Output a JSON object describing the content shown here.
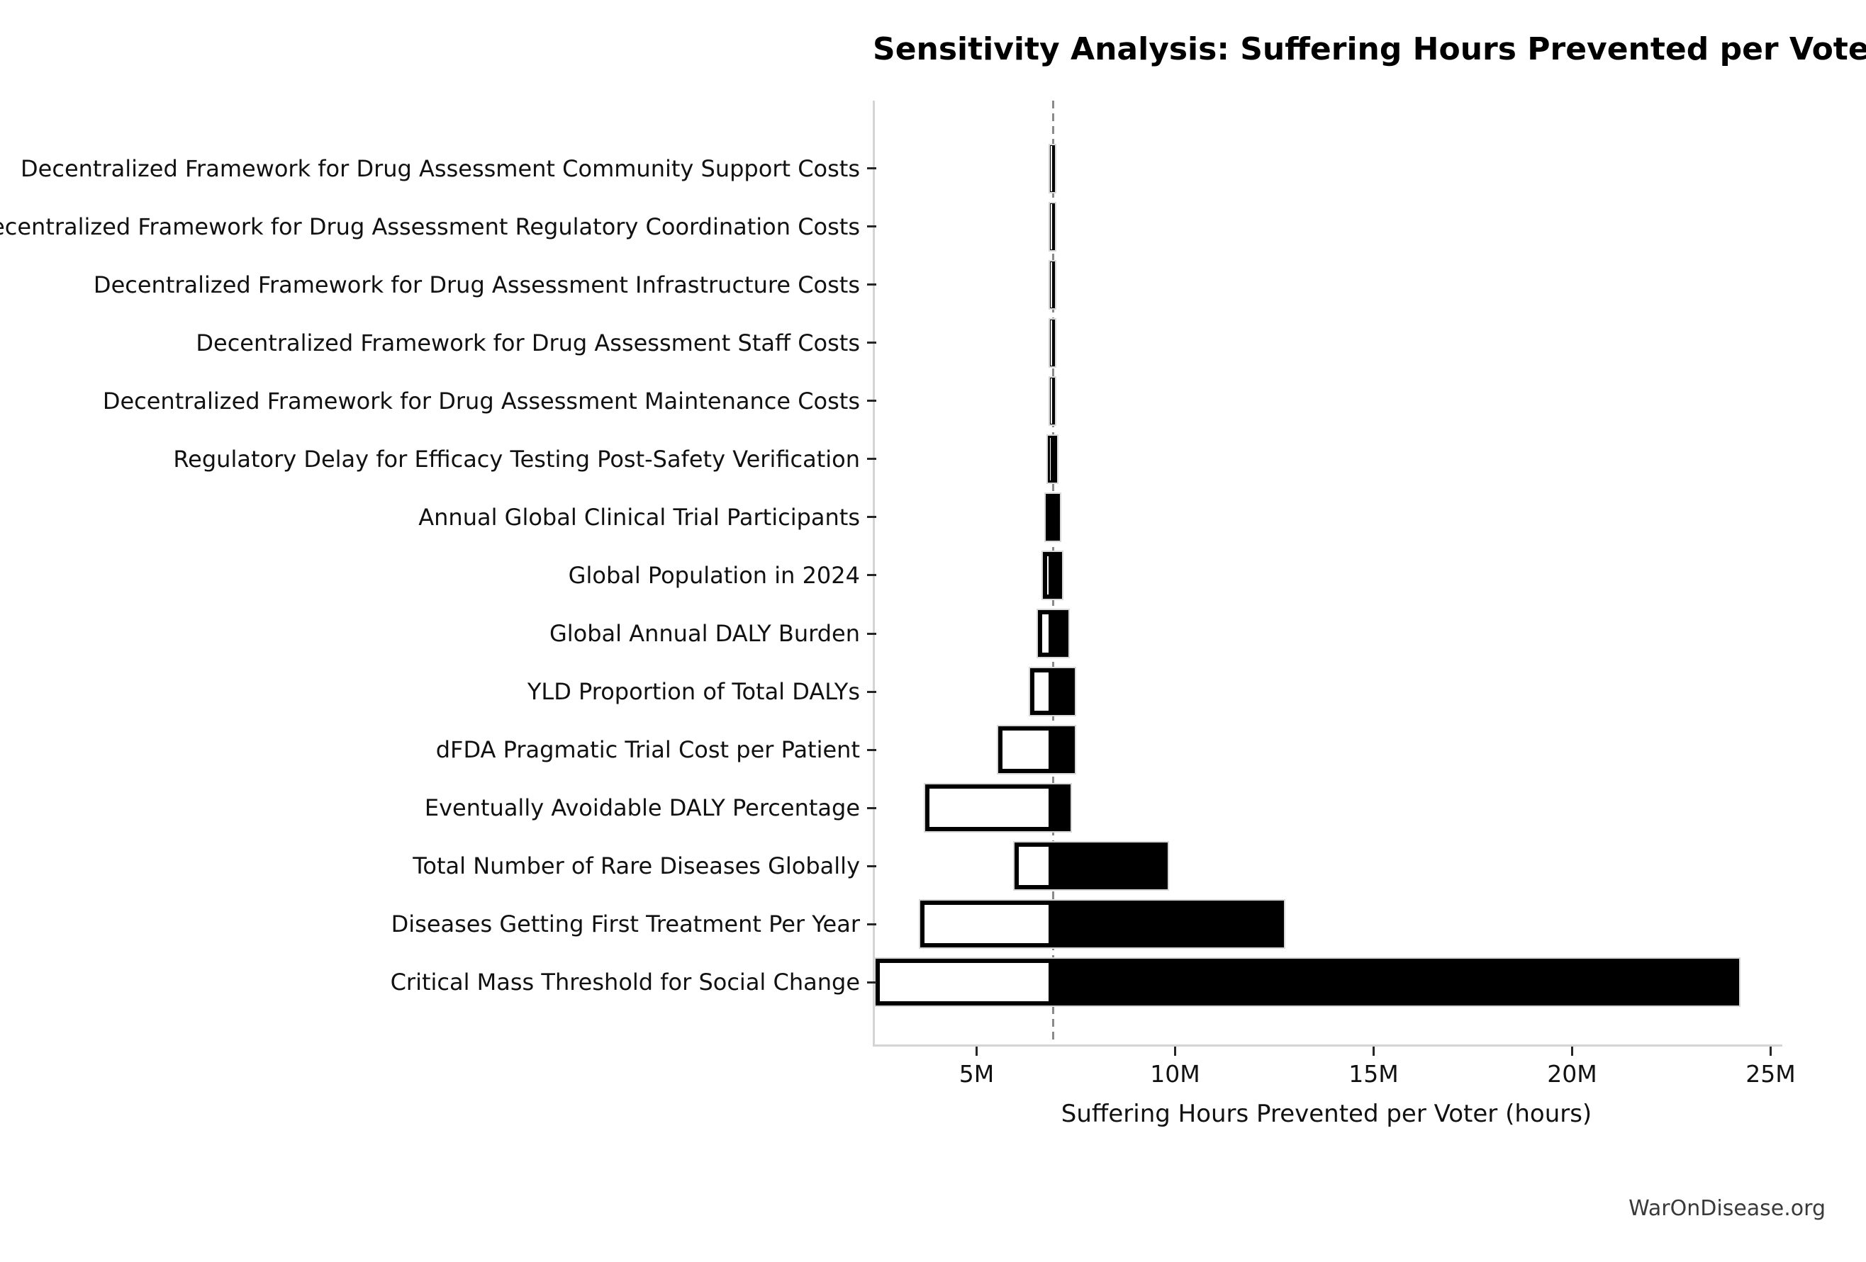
{
  "figure": {
    "title": "Sensitivity Analysis: Suffering Hours Prevented per Voter",
    "watermark": "WarOnDisease.org"
  },
  "chart_data": {
    "type": "bar",
    "variant": "tornado-sensitivity",
    "orientation": "horizontal",
    "title": "Sensitivity Analysis: Suffering Hours Prevented per Voter",
    "xlabel": "Suffering Hours Prevented per Voter (hours)",
    "x_unit": "hours",
    "x_value_scale": "millions",
    "xlim_M": [
      2.42,
      25.22
    ],
    "baseline_M": 6.92,
    "grid": false,
    "legend": null,
    "x_ticks": [
      {
        "value_M": 5,
        "label": "5M"
      },
      {
        "value_M": 10,
        "label": "10M"
      },
      {
        "value_M": 15,
        "label": "15M"
      },
      {
        "value_M": 20,
        "label": "20M"
      },
      {
        "value_M": 25,
        "label": "25M"
      }
    ],
    "rows": [
      {
        "label": "Decentralized Framework for Drug Assessment Community Support Costs",
        "low_M": 6.85,
        "high_M": 6.97
      },
      {
        "label": "Decentralized Framework for Drug Assessment Regulatory Coordination Costs",
        "low_M": 6.85,
        "high_M": 6.97
      },
      {
        "label": "Decentralized Framework for Drug Assessment Infrastructure Costs",
        "low_M": 6.85,
        "high_M": 6.97
      },
      {
        "label": "Decentralized Framework for Drug Assessment Staff Costs",
        "low_M": 6.85,
        "high_M": 6.97
      },
      {
        "label": "Decentralized Framework for Drug Assessment Maintenance Costs",
        "low_M": 6.85,
        "high_M": 6.97
      },
      {
        "label": "Regulatory Delay for Efficacy Testing Post-Safety Verification",
        "low_M": 6.8,
        "high_M": 7.03
      },
      {
        "label": "Annual Global Clinical Trial Participants",
        "low_M": 6.74,
        "high_M": 7.09
      },
      {
        "label": "Global Population in 2024",
        "low_M": 6.67,
        "high_M": 7.15
      },
      {
        "label": "Global Annual DALY Burden",
        "low_M": 6.54,
        "high_M": 7.32
      },
      {
        "label": "YLD Proportion of Total DALYs",
        "low_M": 6.34,
        "high_M": 7.48
      },
      {
        "label": "dFDA Pragmatic Trial Cost per Patient",
        "low_M": 5.55,
        "high_M": 7.48
      },
      {
        "label": "Eventually Avoidable DALY Percentage",
        "low_M": 3.7,
        "high_M": 7.36
      },
      {
        "label": "Total Number of Rare Diseases Globally",
        "low_M": 5.95,
        "high_M": 9.82
      },
      {
        "label": "Diseases Getting First Treatment Per Year",
        "low_M": 3.58,
        "high_M": 12.75
      },
      {
        "label": "Critical Mass Threshold for Social Change",
        "low_M": 2.46,
        "high_M": 24.2
      }
    ],
    "colors": {
      "high_bar_fill": "#000000",
      "low_bar_fill": "#ffffff",
      "bar_edge": "#000000",
      "bar_outline": "#d8d8d8",
      "baseline_dash": "#8a8a8a",
      "spine": "#d4d4d4",
      "tick": "#262626",
      "text": "#111111",
      "watermark": "#3a3a3a",
      "background": "#ffffff"
    }
  }
}
